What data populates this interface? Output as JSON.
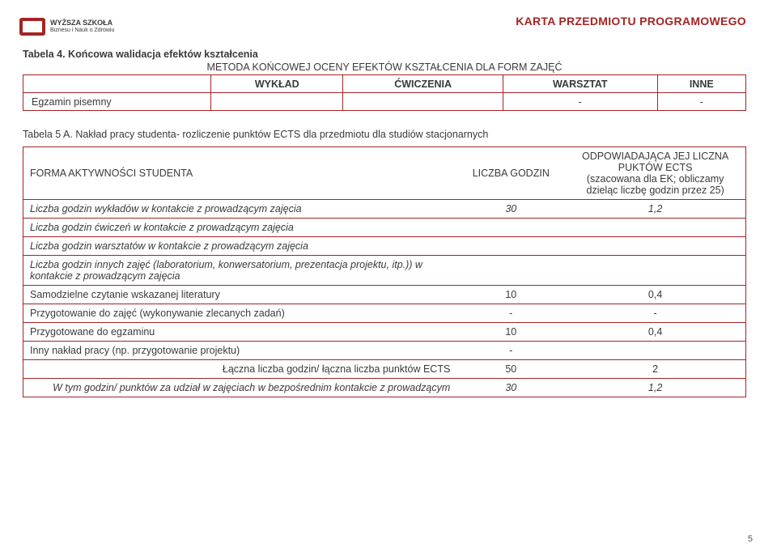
{
  "colors": {
    "accent": "#a42424",
    "text": "#3a3a3a",
    "background": "#ffffff",
    "border": "#a42424"
  },
  "logo": {
    "line1": "WYŻSZA SZKOŁA",
    "line2": "Biznesu i Nauk o Zdrowiu"
  },
  "doc_header": "KARTA PRZEDMIOTU PROGRAMOWEGO",
  "table4": {
    "caption": "Tabela 4. Końcowa walidacja efektów kształcenia",
    "subcaption": "METODA KOŃCOWEJ OCENY EFEKTÓW KSZTAŁCENIA DLA FORM ZAJĘĆ",
    "headers": [
      "WYKŁAD",
      "ĆWICZENIA",
      "WARSZTAT",
      "INNE"
    ],
    "row_label": "Egzamin pisemny",
    "row_values": [
      "",
      "",
      "-",
      "-"
    ]
  },
  "table5": {
    "caption": "Tabela 5 A. Nakład pracy studenta- rozliczenie punktów ECTS dla przedmiotu dla studiów stacjonarnych",
    "headers": {
      "activity": "FORMA AKTYWNOŚCI STUDENTA",
      "hours": "LICZBA GODZIN",
      "ects": "ODPOWIADAJĄCA JEJ LICZNA PUKTÓW ECTS",
      "ects_note": "(szacowana dla EK; obliczamy dzieląc liczbę godzin przez 25)"
    },
    "rows": [
      {
        "label": "Liczba godzin wykładów w kontakcie z prowadzącym zajęcia",
        "hours": "30",
        "ects": "1,2",
        "italic": true
      },
      {
        "label": "Liczba godzin ćwiczeń w kontakcie z prowadzącym zajęcia",
        "hours": "",
        "ects": "",
        "italic": true
      },
      {
        "label": "Liczba godzin warsztatów w kontakcie z prowadzącym zajęcia",
        "hours": "",
        "ects": "",
        "italic": true
      },
      {
        "label": "Liczba godzin innych zajęć (laboratorium, konwersatorium, prezentacja projektu, itp.)) w kontakcie  z prowadzącym zajęcia",
        "hours": "",
        "ects": "",
        "italic": true
      },
      {
        "label": "Samodzielne czytanie wskazanej literatury",
        "hours": "10",
        "ects": "0,4",
        "italic": false
      },
      {
        "label": "Przygotowanie do zajęć (wykonywanie zlecanych zadań)",
        "hours": "-",
        "ects": "-",
        "italic": false
      },
      {
        "label": "Przygotowane do egzaminu",
        "hours": "10",
        "ects": "0,4",
        "italic": false
      },
      {
        "label": "Inny nakład pracy (np. przygotowanie projektu)",
        "hours": "-",
        "ects": "",
        "italic": false
      }
    ],
    "summary": [
      {
        "label": "Łączna liczba godzin/ łączna liczba punktów ECTS",
        "hours": "50",
        "ects": "2",
        "italic": false
      },
      {
        "label": "W tym godzin/ punktów za udział w zajęciach w bezpośrednim kontakcie z prowadzącym",
        "hours": "30",
        "ects": "1,2",
        "italic": true
      }
    ]
  },
  "page_number": "5"
}
